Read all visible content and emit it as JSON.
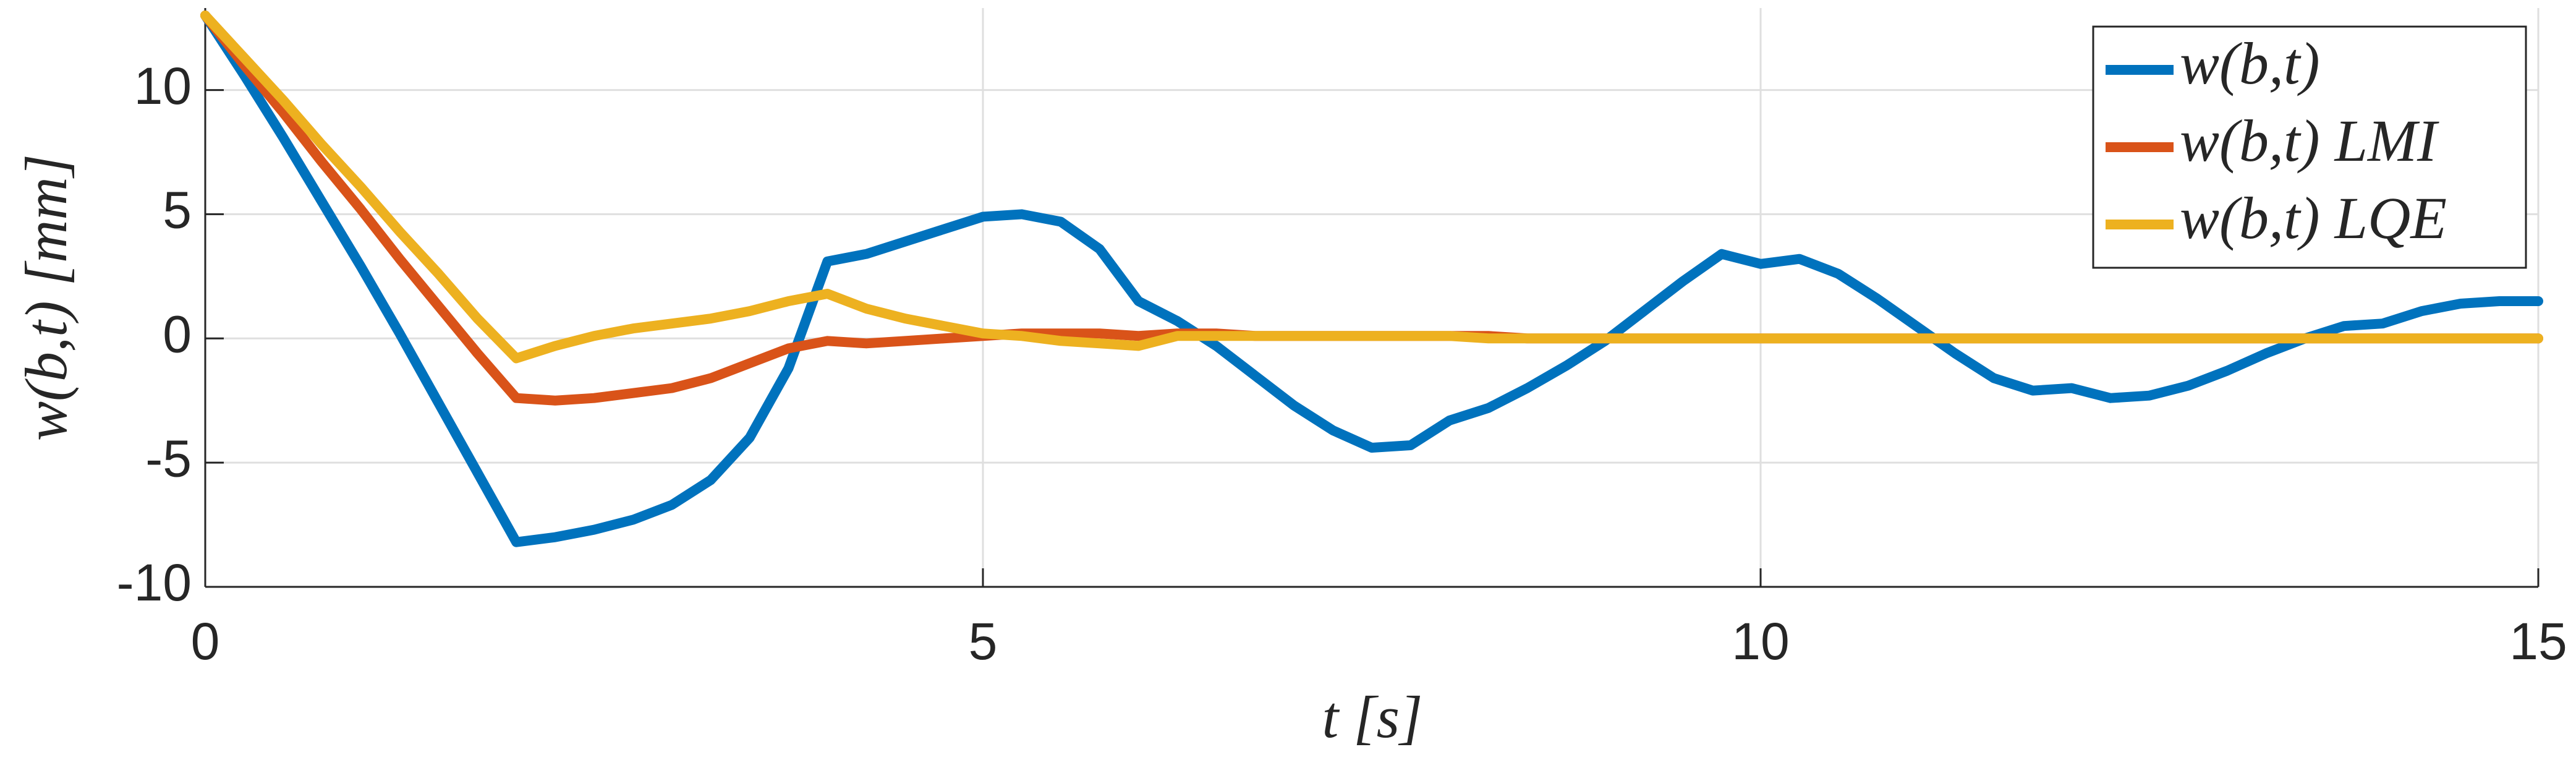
{
  "chart_data": {
    "type": "line",
    "xlabel": "t [s]",
    "ylabel": "w(b,t) [mm]",
    "x": [
      0,
      0.25,
      0.5,
      0.75,
      1,
      1.25,
      1.5,
      1.75,
      2,
      2.25,
      2.5,
      2.75,
      3,
      3.25,
      3.5,
      3.75,
      4,
      4.25,
      4.5,
      4.75,
      5,
      5.25,
      5.5,
      5.75,
      6,
      6.25,
      6.5,
      6.75,
      7,
      7.25,
      7.5,
      7.75,
      8,
      8.25,
      8.5,
      8.75,
      9,
      9.25,
      9.5,
      9.75,
      10,
      10.25,
      10.5,
      10.75,
      11,
      11.25,
      11.5,
      11.75,
      12,
      12.25,
      12.5,
      12.75,
      13,
      13.25,
      13.5,
      13.75,
      14,
      14.25,
      14.5,
      14.75,
      15
    ],
    "series": [
      {
        "name": "w(b,t)",
        "color": "#0072bd",
        "values": [
          13,
          10.6,
          8.1,
          5.5,
          2.9,
          0.2,
          -2.6,
          -5.4,
          -8.2,
          -8.0,
          -7.7,
          -7.3,
          -6.7,
          -5.7,
          -4.0,
          -1.2,
          3.1,
          3.4,
          3.9,
          4.4,
          4.9,
          5.0,
          4.7,
          3.6,
          1.5,
          0.7,
          -0.3,
          -1.5,
          -2.7,
          -3.7,
          -4.4,
          -4.3,
          -3.3,
          -2.8,
          -2.0,
          -1.1,
          -0.1,
          1.1,
          2.3,
          3.4,
          3.0,
          3.2,
          2.6,
          1.6,
          0.5,
          -0.6,
          -1.6,
          -2.1,
          -2.0,
          -2.4,
          -2.3,
          -1.9,
          -1.3,
          -0.6,
          0.0,
          0.5,
          0.6,
          1.1,
          1.4,
          1.5,
          1.5
        ]
      },
      {
        "name": "w(b,t) LMI",
        "color": "#d95319",
        "values": [
          13,
          11.0,
          9.1,
          7.1,
          5.2,
          3.2,
          1.3,
          -0.6,
          -2.4,
          -2.5,
          -2.4,
          -2.2,
          -2.0,
          -1.6,
          -1.0,
          -0.4,
          -0.1,
          -0.2,
          -0.1,
          0,
          0.1,
          0.2,
          0.2,
          0.2,
          0.1,
          0.2,
          0.2,
          0.1,
          0.1,
          0.1,
          0.1,
          0.1,
          0.1,
          0.1,
          0,
          0,
          0,
          0,
          0,
          0,
          0,
          0,
          0,
          0,
          0,
          0,
          0,
          0,
          0,
          0,
          0,
          0,
          0,
          0,
          0,
          0,
          0,
          0,
          0,
          0,
          0
        ]
      },
      {
        "name": "w(b,t) LQE",
        "color": "#edb120",
        "values": [
          13,
          11.3,
          9.6,
          7.8,
          6.1,
          4.3,
          2.6,
          0.8,
          -0.8,
          -0.3,
          0.1,
          0.4,
          0.6,
          0.8,
          1.1,
          1.5,
          1.8,
          1.2,
          0.8,
          0.5,
          0.2,
          0.1,
          -0.1,
          -0.2,
          -0.3,
          0.1,
          0.1,
          0.1,
          0.1,
          0.1,
          0.1,
          0.1,
          0.1,
          0,
          0,
          0,
          0,
          0,
          0,
          0,
          0,
          0,
          0,
          0,
          0,
          0,
          0,
          0,
          0,
          0,
          0,
          0,
          0,
          0,
          0,
          0,
          0,
          0,
          0,
          0,
          0
        ]
      }
    ],
    "xlim": [
      0,
      15
    ],
    "xticks": [
      0,
      5,
      10,
      15
    ],
    "ylim": [
      -10,
      13.3
    ],
    "yticks": [
      -10,
      -5,
      0,
      5,
      10
    ],
    "grid": true,
    "legend": "upper right"
  }
}
